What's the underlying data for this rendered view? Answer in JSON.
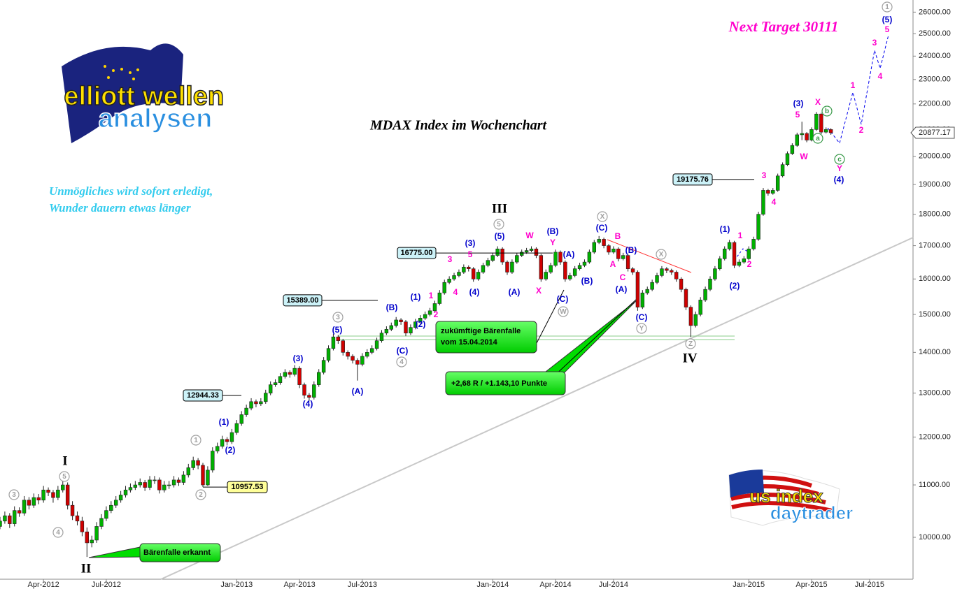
{
  "chart_data": {
    "type": "candlestick",
    "title": "MDAX Index im Wochenchart",
    "subtitle": [
      "Unmögliches wird sofort erledigt,",
      "Wunder dauern etwas länger"
    ],
    "target": "Next Target 30111",
    "logos": {
      "top": [
        "elliott",
        "wellen",
        "analysen"
      ],
      "bottom": [
        "us index",
        "daytrader"
      ]
    },
    "up_color": "#00b000",
    "down_color": "#d00000",
    "log_y": true,
    "ylim": [
      9266,
      26580
    ],
    "xlim": [
      0,
      189
    ],
    "yticks": [
      {
        "value": 10000,
        "label": "10000.00"
      },
      {
        "value": 11000,
        "label": "11000.00"
      },
      {
        "value": 12000,
        "label": "12000.00"
      },
      {
        "value": 13000,
        "label": "13000.00"
      },
      {
        "value": 14000,
        "label": "14000.00"
      },
      {
        "value": 15000,
        "label": "15000.00"
      },
      {
        "value": 16000,
        "label": "16000.00"
      },
      {
        "value": 17000,
        "label": "17000.00"
      },
      {
        "value": 18000,
        "label": "18000.00"
      },
      {
        "value": 19000,
        "label": "19000.00"
      },
      {
        "value": 20000,
        "label": "20000.00"
      },
      {
        "value": 21000,
        "label": "21000.00"
      },
      {
        "value": 22000,
        "label": "22000.00"
      },
      {
        "value": 23000,
        "label": "23000.00"
      },
      {
        "value": 24000,
        "label": "24000.00"
      },
      {
        "value": 25000,
        "label": "25000.00"
      },
      {
        "value": 26000,
        "label": "26000.00"
      }
    ],
    "xticks": [
      {
        "value": 9,
        "label": "Apr-2012"
      },
      {
        "value": 22,
        "label": "Jul-2012"
      },
      {
        "value": 49,
        "label": "Jan-2013"
      },
      {
        "value": 62,
        "label": "Apr-2013"
      },
      {
        "value": 75,
        "label": "Jul-2013"
      },
      {
        "value": 102,
        "label": "Jan-2014"
      },
      {
        "value": 115,
        "label": "Apr-2014"
      },
      {
        "value": 127,
        "label": "Jul-2014"
      },
      {
        "value": 155,
        "label": "Jan-2015"
      },
      {
        "value": 168,
        "label": "Apr-2015"
      },
      {
        "value": 180,
        "label": "Jul-2015"
      }
    ],
    "last_price": 20877.17,
    "levels": {
      "values": [
        16775,
        15389,
        12944.33,
        10957.53,
        19175.76
      ],
      "value_labels": [
        "16775.00",
        "15389.00",
        "12944.33",
        "10957.53",
        "19175.76"
      ],
      "colors": [
        "#ccf2f8",
        "#ccf2f8",
        "#ccf2f8",
        "#ffff99",
        "#ccf2f8"
      ]
    },
    "callouts": [
      [
        "zukümftige Bärenfalle",
        "vom 15.04.2014"
      ],
      [
        "+2,68 R / +1.143,10 Punkte"
      ],
      [
        "Bärenfalle erkannt"
      ]
    ],
    "wave_labels": [
      {
        "style": "roman",
        "color": "#000000",
        "labels": [
          "I",
          "II",
          "III",
          "IV"
        ]
      },
      {
        "style": "circled",
        "color": "#a0a0a0",
        "labels": [
          "3",
          "4",
          "5",
          "1",
          "2",
          "3",
          "4",
          "5",
          "X",
          "W",
          "Y",
          "X",
          "Z",
          "1"
        ]
      },
      {
        "style": "circled",
        "color": "#3a9a4a",
        "labels": [
          "b",
          "a",
          "c"
        ]
      },
      {
        "style": "plain",
        "color": "#0000cc",
        "labels": [
          "(1)",
          "(2)",
          "(3)",
          "(4)",
          "(5)",
          "(A)",
          "(B)",
          "(C)",
          "(1)",
          "(2)",
          "(3)",
          "(4)",
          "(5)",
          "(A)",
          "(B)",
          "(A)",
          "(C)",
          "(B)",
          "(C)",
          "(B)",
          "(A)",
          "(C)",
          "(1)",
          "(2)",
          "(3)",
          "(4)",
          "(5)"
        ]
      },
      {
        "style": "plain",
        "color": "#ff00cc",
        "labels": [
          "3",
          "5",
          "4",
          "1",
          "2",
          "W",
          "Y",
          "X",
          "B",
          "A",
          "C",
          "1",
          "2",
          "3",
          "4",
          "5",
          "X",
          "W",
          "Y",
          "1",
          "2",
          "3",
          "4",
          "5"
        ]
      }
    ],
    "ohlc": [
      [
        10200,
        10380,
        10150,
        10300
      ],
      [
        10300,
        10480,
        10250,
        10400
      ],
      [
        10400,
        10450,
        10170,
        10250
      ],
      [
        10250,
        10580,
        10200,
        10500
      ],
      [
        10500,
        10560,
        10380,
        10450
      ],
      [
        10450,
        10780,
        10400,
        10700
      ],
      [
        10700,
        10760,
        10520,
        10600
      ],
      [
        10600,
        10830,
        10550,
        10750
      ],
      [
        10750,
        10820,
        10620,
        10700
      ],
      [
        10700,
        10980,
        10650,
        10900
      ],
      [
        10900,
        10950,
        10780,
        10850
      ],
      [
        10850,
        10900,
        10650,
        10750
      ],
      [
        10750,
        10980,
        10700,
        10900
      ],
      [
        10900,
        11080,
        10850,
        11000
      ],
      [
        11000,
        11050,
        10520,
        10600
      ],
      [
        10600,
        10680,
        10320,
        10400
      ],
      [
        10400,
        10480,
        10220,
        10300
      ],
      [
        10300,
        10380,
        10020,
        10100
      ],
      [
        10100,
        10180,
        9650,
        9900
      ],
      [
        9900,
        10030,
        9820,
        9950
      ],
      [
        9950,
        10280,
        9900,
        10200
      ],
      [
        10200,
        10430,
        10150,
        10350
      ],
      [
        10350,
        10580,
        10300,
        10500
      ],
      [
        10500,
        10680,
        10450,
        10600
      ],
      [
        10600,
        10780,
        10550,
        10700
      ],
      [
        10700,
        10880,
        10650,
        10800
      ],
      [
        10800,
        10980,
        10750,
        10900
      ],
      [
        10900,
        11030,
        10850,
        10950
      ],
      [
        10950,
        11080,
        10900,
        11000
      ],
      [
        11000,
        11130,
        10950,
        11050
      ],
      [
        11050,
        11100,
        10880,
        10950
      ],
      [
        10950,
        11180,
        10900,
        11100
      ],
      [
        11100,
        11180,
        11020,
        11100
      ],
      [
        11100,
        11150,
        10830,
        10900
      ],
      [
        10900,
        11080,
        10850,
        11000
      ],
      [
        11000,
        11080,
        10920,
        11000
      ],
      [
        11000,
        11180,
        10950,
        11100
      ],
      [
        11100,
        11150,
        10980,
        11050
      ],
      [
        11050,
        11280,
        11000,
        11200
      ],
      [
        11200,
        11430,
        11150,
        11350
      ],
      [
        11350,
        11580,
        11300,
        11500
      ],
      [
        11500,
        11550,
        11320,
        11400
      ],
      [
        11400,
        11450,
        10957.53,
        11000
      ],
      [
        11000,
        11380,
        10980,
        11300
      ],
      [
        11300,
        11780,
        11250,
        11700
      ],
      [
        11700,
        11880,
        11650,
        11800
      ],
      [
        11800,
        12030,
        11750,
        11950
      ],
      [
        11950,
        12000,
        11820,
        11900
      ],
      [
        11900,
        12180,
        11850,
        12100
      ],
      [
        12100,
        12380,
        12050,
        12300
      ],
      [
        12300,
        12580,
        12250,
        12500
      ],
      [
        12500,
        12730,
        12450,
        12650
      ],
      [
        12650,
        12880,
        12600,
        12800
      ],
      [
        12800,
        12850,
        12670,
        12750
      ],
      [
        12750,
        12880,
        12700,
        12800
      ],
      [
        12800,
        13080,
        12750,
        13000
      ],
      [
        13000,
        13280,
        12950,
        13200
      ],
      [
        13200,
        13330,
        13150,
        13250
      ],
      [
        13250,
        13480,
        13200,
        13400
      ],
      [
        13400,
        13580,
        13350,
        13500
      ],
      [
        13500,
        13550,
        13370,
        13450
      ],
      [
        13450,
        13680,
        13400,
        13600
      ],
      [
        13600,
        13650,
        13120,
        13200
      ],
      [
        13200,
        13250,
        12870,
        12950
      ],
      [
        12950,
        13000,
        12820,
        12900
      ],
      [
        12900,
        13280,
        12850,
        13200
      ],
      [
        13200,
        13580,
        13150,
        13500
      ],
      [
        13500,
        13880,
        13450,
        13800
      ],
      [
        13800,
        14180,
        13750,
        14100
      ],
      [
        14100,
        14480,
        14050,
        14400
      ],
      [
        14400,
        14450,
        14220,
        14300
      ],
      [
        14300,
        14350,
        13920,
        14000
      ],
      [
        14000,
        14050,
        13820,
        13900
      ],
      [
        13900,
        13950,
        13720,
        13800
      ],
      [
        13800,
        13850,
        13300,
        13700
      ],
      [
        13700,
        13980,
        13650,
        13900
      ],
      [
        13900,
        14080,
        13850,
        14000
      ],
      [
        14000,
        14180,
        13950,
        14100
      ],
      [
        14100,
        14380,
        14050,
        14300
      ],
      [
        14300,
        14580,
        14250,
        14500
      ],
      [
        14500,
        14680,
        14450,
        14600
      ],
      [
        14600,
        14780,
        14550,
        14700
      ],
      [
        14700,
        14930,
        14650,
        14850
      ],
      [
        14850,
        14900,
        14720,
        14800
      ],
      [
        14800,
        14850,
        14420,
        14500
      ],
      [
        14500,
        14730,
        14450,
        14650
      ],
      [
        14650,
        14880,
        14600,
        14800
      ],
      [
        14800,
        14980,
        14750,
        14900
      ],
      [
        14900,
        15080,
        14850,
        15000
      ],
      [
        15000,
        15180,
        14950,
        15100
      ],
      [
        15100,
        15380,
        15050,
        15300
      ],
      [
        15300,
        15680,
        15250,
        15600
      ],
      [
        15600,
        15980,
        15550,
        15900
      ],
      [
        15900,
        16080,
        15850,
        16000
      ],
      [
        16000,
        16180,
        15950,
        16100
      ],
      [
        16100,
        16280,
        16050,
        16200
      ],
      [
        16200,
        16430,
        16150,
        16350
      ],
      [
        16350,
        16400,
        16220,
        16300
      ],
      [
        16300,
        16350,
        15920,
        16000
      ],
      [
        16000,
        16280,
        15950,
        16200
      ],
      [
        16200,
        16480,
        16150,
        16400
      ],
      [
        16400,
        16630,
        16350,
        16550
      ],
      [
        16550,
        16780,
        16500,
        16700
      ],
      [
        16700,
        16980,
        16650,
        16900
      ],
      [
        16900,
        16950,
        16420,
        16500
      ],
      [
        16500,
        16550,
        16120,
        16200
      ],
      [
        16200,
        16580,
        16150,
        16500
      ],
      [
        16500,
        16780,
        16450,
        16700
      ],
      [
        16700,
        16880,
        16650,
        16800
      ],
      [
        16800,
        16930,
        16750,
        16850
      ],
      [
        16850,
        16980,
        16800,
        16900
      ],
      [
        16900,
        16950,
        16620,
        16700
      ],
      [
        16700,
        16750,
        15920,
        16000
      ],
      [
        16000,
        16280,
        15950,
        16200
      ],
      [
        16200,
        16480,
        16150,
        16400
      ],
      [
        16400,
        16880,
        16350,
        16800
      ],
      [
        16800,
        16850,
        16420,
        16500
      ],
      [
        16500,
        16550,
        15920,
        16000
      ],
      [
        16000,
        16180,
        15950,
        16100
      ],
      [
        16100,
        16380,
        16050,
        16300
      ],
      [
        16300,
        16480,
        16250,
        16400
      ],
      [
        16400,
        16580,
        16350,
        16500
      ],
      [
        16500,
        16880,
        16450,
        16800
      ],
      [
        16800,
        17180,
        16750,
        17100
      ],
      [
        17100,
        17300,
        17050,
        17200
      ],
      [
        17200,
        17250,
        16920,
        17000
      ],
      [
        17000,
        17050,
        16720,
        16800
      ],
      [
        16800,
        16980,
        16750,
        16900
      ],
      [
        16900,
        16950,
        16520,
        16600
      ],
      [
        16600,
        16780,
        16550,
        16700
      ],
      [
        16700,
        16750,
        16220,
        16300
      ],
      [
        16300,
        16350,
        16120,
        16200
      ],
      [
        16200,
        16250,
        15100,
        15200
      ],
      [
        15200,
        15680,
        15150,
        15600
      ],
      [
        15600,
        15780,
        15550,
        15700
      ],
      [
        15700,
        15980,
        15650,
        15900
      ],
      [
        15900,
        16180,
        15850,
        16100
      ],
      [
        16100,
        16380,
        16050,
        16300
      ],
      [
        16300,
        16350,
        16170,
        16250
      ],
      [
        16250,
        16300,
        16120,
        16200
      ],
      [
        16200,
        16250,
        15920,
        16000
      ],
      [
        16000,
        16050,
        15620,
        15700
      ],
      [
        15700,
        15750,
        15120,
        15200
      ],
      [
        15200,
        15250,
        14400,
        14700
      ],
      [
        14700,
        15080,
        14650,
        15000
      ],
      [
        15000,
        15480,
        14950,
        15400
      ],
      [
        15400,
        15780,
        15350,
        15700
      ],
      [
        15700,
        16080,
        15650,
        16000
      ],
      [
        16000,
        16380,
        15950,
        16300
      ],
      [
        16300,
        16680,
        16250,
        16600
      ],
      [
        16600,
        16980,
        16550,
        16900
      ],
      [
        16900,
        17180,
        16850,
        17100
      ],
      [
        17100,
        17150,
        16320,
        16400
      ],
      [
        16400,
        16580,
        16350,
        16500
      ],
      [
        16500,
        16680,
        16450,
        16600
      ],
      [
        16600,
        16980,
        16550,
        16900
      ],
      [
        16900,
        17280,
        16850,
        17200
      ],
      [
        17200,
        18080,
        17150,
        18000
      ],
      [
        18000,
        18880,
        17950,
        18800
      ],
      [
        18800,
        18850,
        18620,
        18700
      ],
      [
        18700,
        18880,
        18650,
        18800
      ],
      [
        18800,
        19380,
        18750,
        19300
      ],
      [
        19300,
        19780,
        19250,
        19700
      ],
      [
        19700,
        20180,
        19650,
        20100
      ],
      [
        20100,
        20480,
        20050,
        20400
      ],
      [
        20400,
        20880,
        20350,
        20800
      ],
      [
        20800,
        21300,
        20600,
        20850
      ],
      [
        20850,
        20900,
        20520,
        20600
      ],
      [
        20600,
        21080,
        20550,
        21000
      ],
      [
        21000,
        21680,
        20950,
        21600
      ],
      [
        21600,
        21650,
        20820,
        20900
      ],
      [
        20900,
        21080,
        20850,
        21000
      ],
      [
        21000,
        21050,
        20800,
        20877.17
      ]
    ]
  }
}
